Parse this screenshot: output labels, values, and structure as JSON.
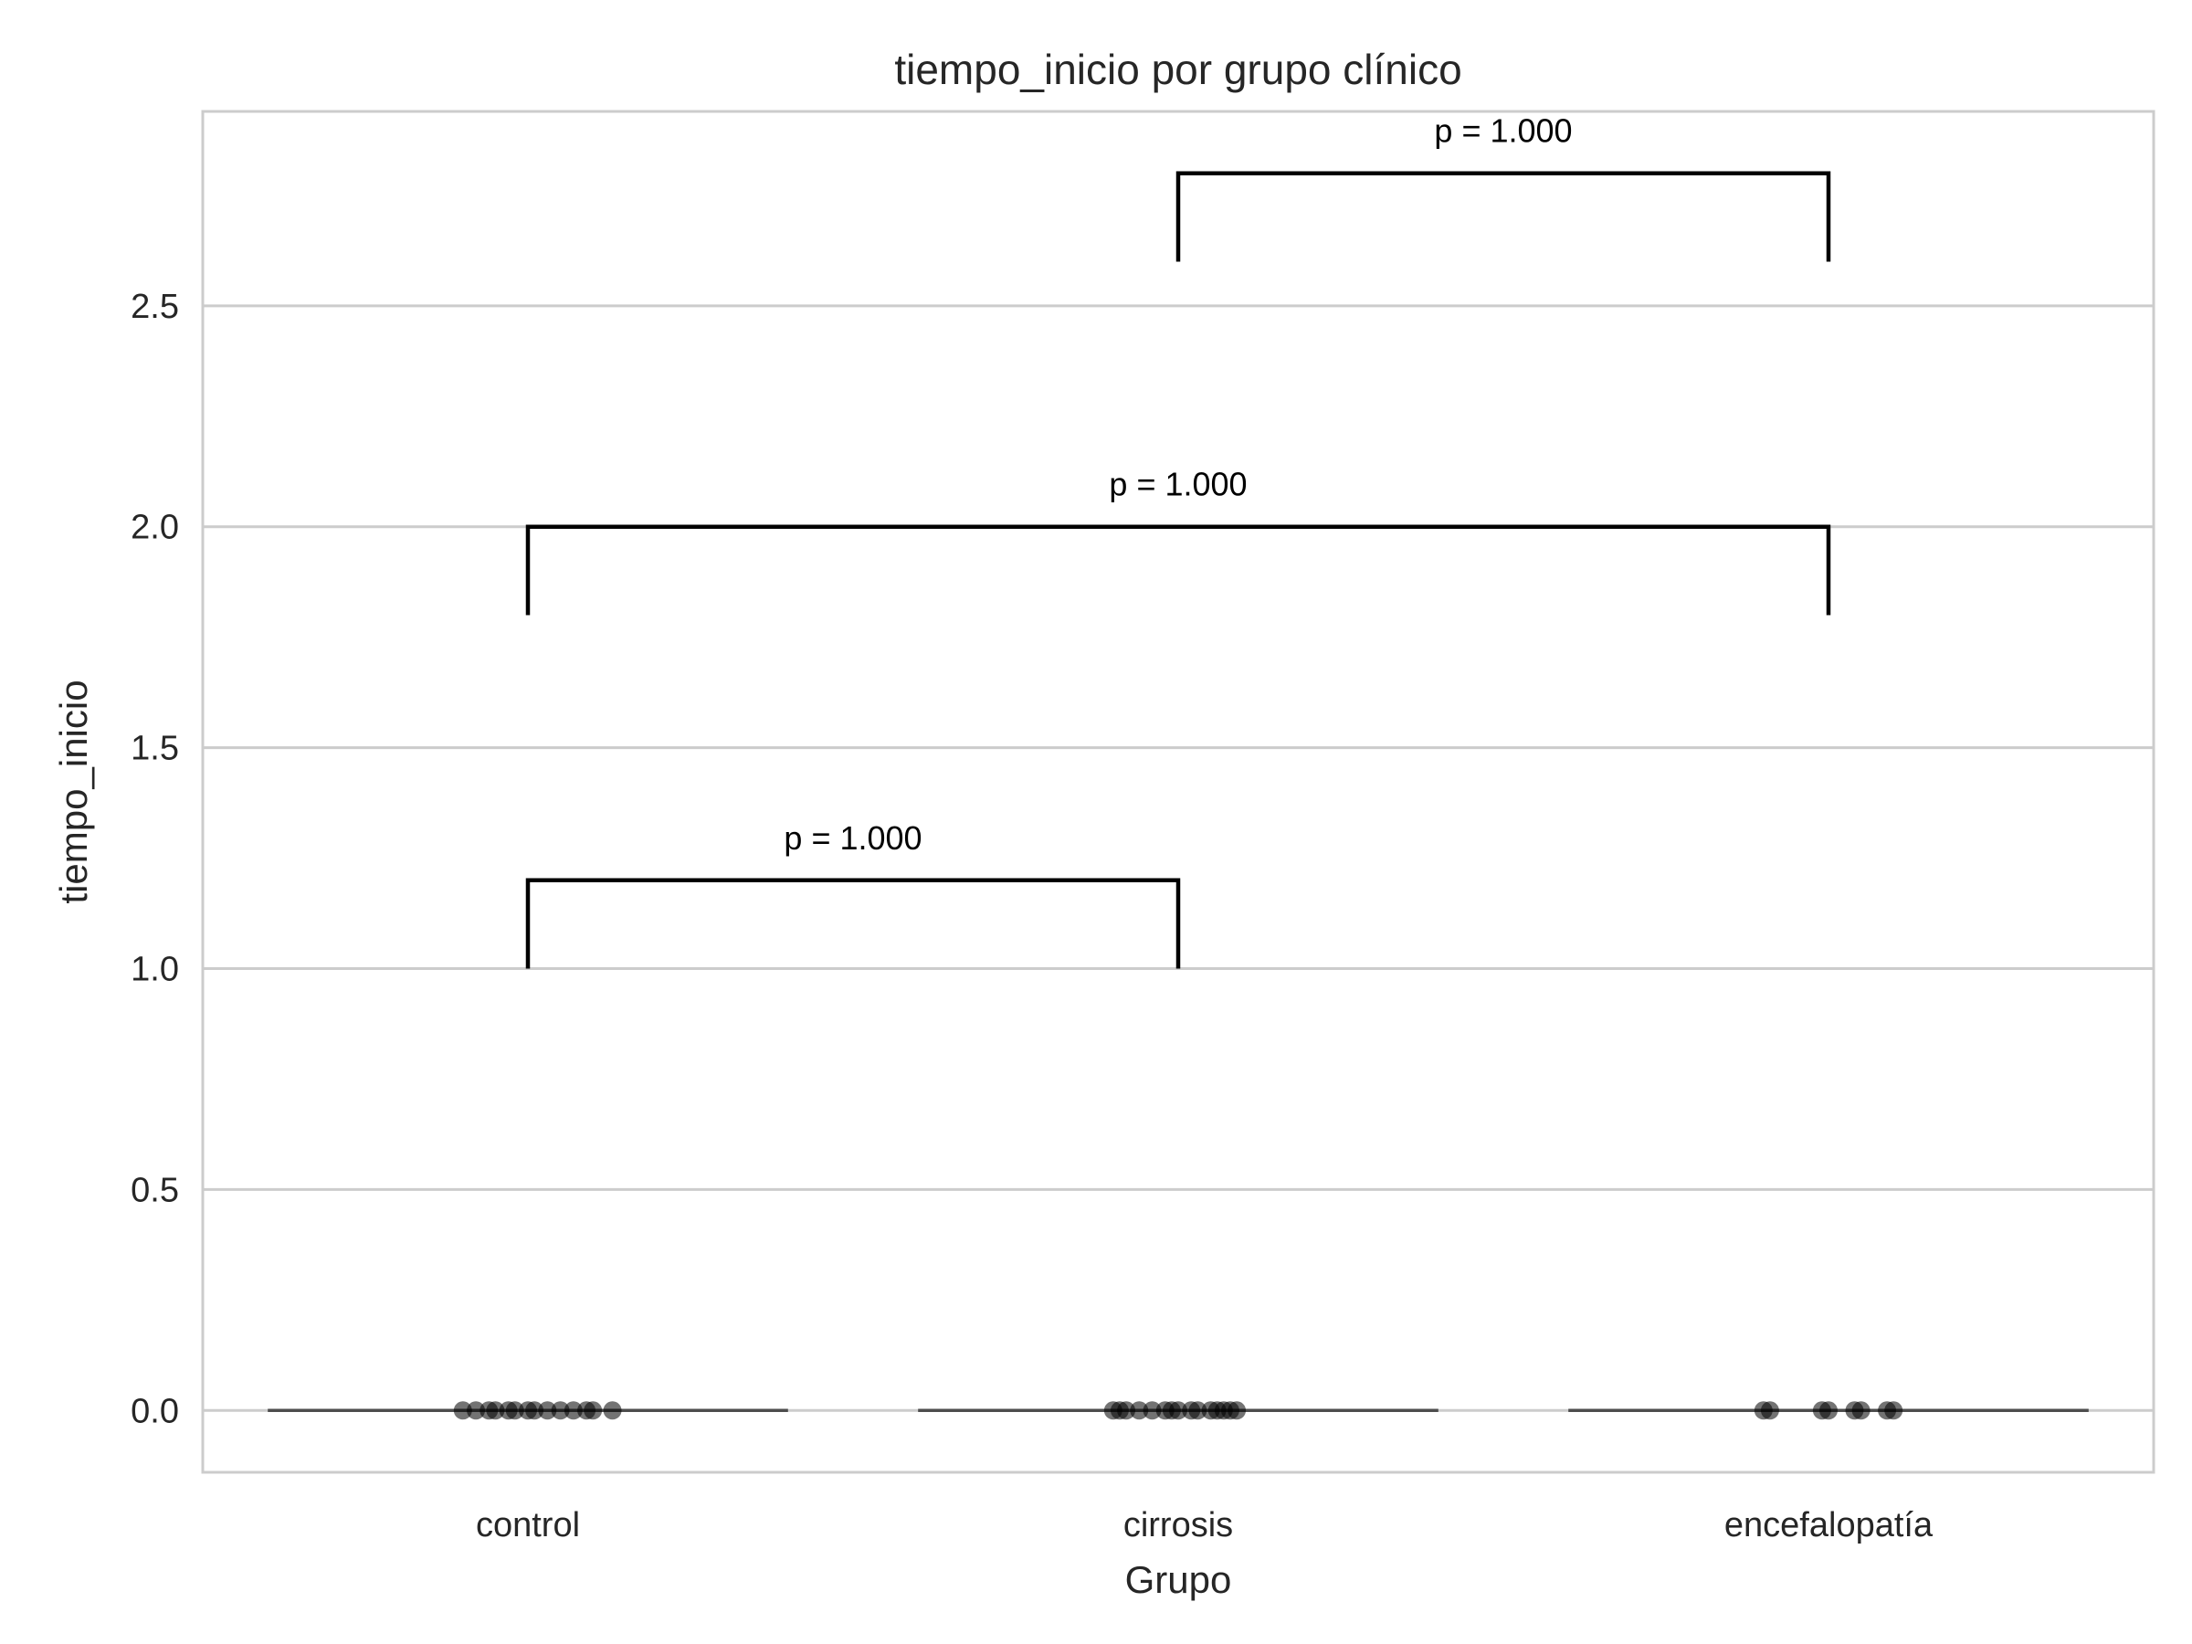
{
  "chart_data": {
    "type": "scatter",
    "title": "tiempo_inicio por grupo clínico",
    "xlabel": "Grupo",
    "ylabel": "tiempo_inicio",
    "categories": [
      "control",
      "cirrosis",
      "encefalopatía"
    ],
    "ylim": [
      -0.14,
      2.94
    ],
    "yticks": [
      "0.0",
      "0.5",
      "1.0",
      "1.5",
      "2.0",
      "2.5"
    ],
    "ytick_values": [
      0,
      0.5,
      1.0,
      1.5,
      2.0,
      2.5
    ],
    "grid": "horizontal",
    "box_medians": [
      0,
      0,
      0
    ],
    "points": [
      {
        "category": "control",
        "x_offsets": [
          -0.1,
          -0.08,
          -0.06,
          -0.05,
          -0.03,
          -0.02,
          0.0,
          0.01,
          0.03,
          0.05,
          0.07,
          0.09,
          0.1,
          0.13
        ],
        "y": 0
      },
      {
        "category": "cirrosis",
        "x_offsets": [
          -0.1,
          -0.09,
          -0.08,
          -0.06,
          -0.04,
          -0.02,
          -0.01,
          0.0,
          0.02,
          0.03,
          0.05,
          0.06,
          0.07,
          0.08,
          0.09
        ],
        "y": 0
      },
      {
        "category": "encefalopatía",
        "x_offsets": [
          -0.1,
          -0.09,
          -0.01,
          0.0,
          0.04,
          0.05,
          0.09,
          0.1
        ],
        "y": 0
      }
    ],
    "comparisons": [
      {
        "from": "control",
        "to": "cirrosis",
        "y": 1.2,
        "tip": 1.0,
        "label": "p = 1.000"
      },
      {
        "from": "control",
        "to": "encefalopatía",
        "y": 2.0,
        "tip": 1.8,
        "label": "p = 1.000"
      },
      {
        "from": "cirrosis",
        "to": "encefalopatía",
        "y": 2.8,
        "tip": 2.6,
        "label": "p = 1.000"
      }
    ],
    "colors": {
      "grid": "#cccccc",
      "frame": "#cccccc",
      "points": "#000000",
      "box": "#4d4d4d",
      "bracket": "#000000"
    }
  }
}
